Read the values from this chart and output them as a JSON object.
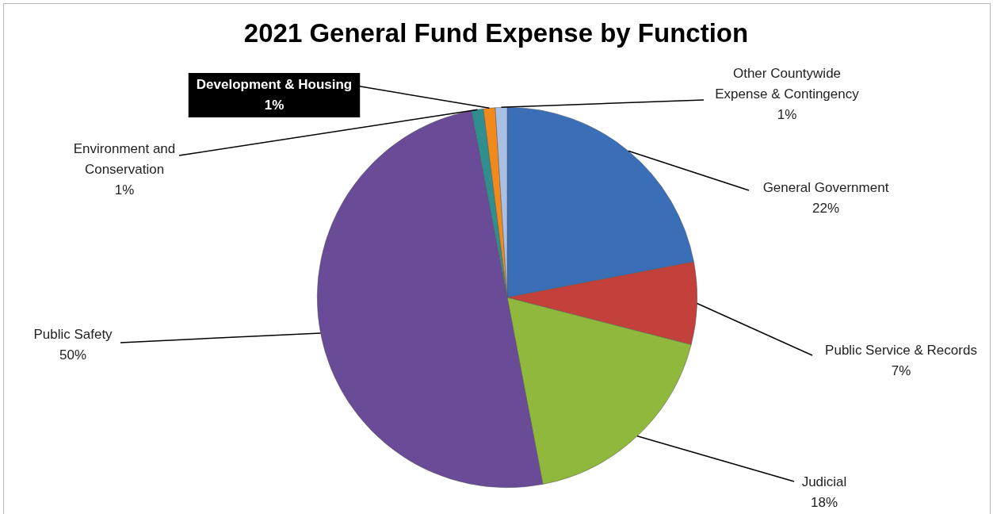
{
  "chart_data": {
    "type": "pie",
    "title": "2021 General Fund Expense by Function",
    "categories": [
      "General Government",
      "Public Service & Records",
      "Judicial",
      "Public Safety",
      "Environment and Conservation",
      "Development & Housing",
      "Other Countywide Expense & Contingency"
    ],
    "values": [
      22,
      7,
      18,
      50,
      1,
      1,
      1
    ],
    "value_labels": [
      "22%",
      "7%",
      "18%",
      "50%",
      "1%",
      "1%",
      "1%"
    ],
    "colors": [
      "#3a6fb8",
      "#c4403a",
      "#8fb83c",
      "#6a4b98",
      "#2f8f8f",
      "#f08a1c",
      "#a9bfe3"
    ],
    "legend": false
  }
}
